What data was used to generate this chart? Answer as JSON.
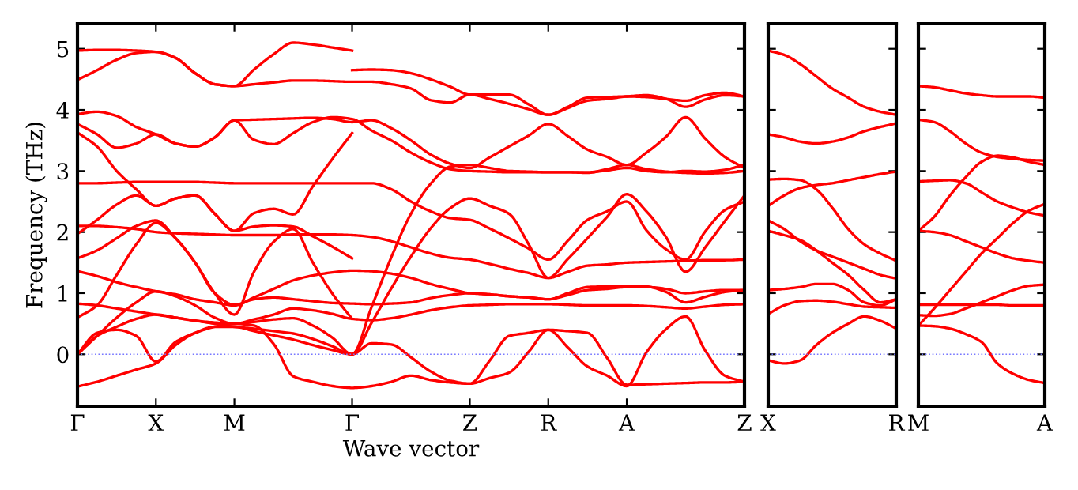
{
  "chart_data": [
    {
      "type": "line",
      "color": "#ff0000",
      "ylabel": "Frequency (THz)",
      "xlabel": "Wave vector",
      "categories": [
        "Γ",
        null,
        null,
        null,
        "X",
        null,
        null,
        null,
        "M",
        null,
        null,
        null,
        null,
        null,
        "Γ",
        null,
        null,
        null,
        null,
        null,
        "Z",
        null,
        null,
        null,
        "R",
        null,
        null,
        null,
        "A",
        null,
        null,
        null,
        null,
        null,
        "Z"
      ],
      "ylim": [
        -0.85,
        5.41
      ],
      "yticks": [
        0,
        1,
        2,
        3,
        4,
        5
      ],
      "ref_lines": [
        {
          "axis": "y",
          "value": 0,
          "color": "#7777ff",
          "line_style": "dotted"
        }
      ],
      "series": [
        {
          "values": [
            4.97,
            4.98,
            4.98,
            4.97,
            4.95,
            4.85,
            4.6,
            4.42,
            4.39,
            4.66,
            4.91,
            5.1,
            5.07,
            5.02,
            4.97,
            null,
            null,
            null,
            null,
            null,
            null,
            null,
            null,
            null,
            null,
            null,
            null,
            null,
            null,
            null,
            null,
            null,
            null,
            null,
            null
          ]
        },
        {
          "values": [
            4.49,
            4.65,
            4.82,
            4.93,
            4.95,
            4.85,
            4.6,
            4.42,
            4.39,
            4.42,
            4.45,
            4.48,
            4.48,
            4.47,
            4.46,
            4.46,
            4.42,
            4.35,
            4.16,
            4.12,
            4.25,
            4.18,
            4.1,
            4.01,
            3.92,
            4.03,
            4.15,
            4.18,
            4.22,
            4.24,
            4.18,
            4.05,
            4.17,
            4.24,
            4.22
          ]
        },
        {
          "values": [
            3.93,
            3.97,
            3.9,
            3.72,
            3.6,
            3.45,
            3.4,
            3.55,
            3.83,
            3.84,
            3.85,
            3.86,
            3.87,
            3.85,
            3.8,
            3.83,
            3.7,
            3.5,
            3.27,
            3.12,
            3.05,
            3.22,
            3.4,
            3.58,
            3.77,
            3.57,
            3.35,
            3.23,
            3.1,
            3.3,
            3.56,
            3.88,
            3.53,
            3.23,
            3.05
          ]
        },
        {
          "values": [
            3.77,
            3.6,
            3.38,
            3.45,
            3.6,
            3.45,
            3.4,
            3.55,
            3.83,
            3.51,
            3.44,
            3.62,
            3.8,
            3.88,
            3.85,
            3.66,
            3.5,
            3.3,
            3.14,
            3.03,
            3.0,
            2.99,
            2.98,
            2.98,
            2.98,
            2.98,
            2.97,
            3.03,
            3.1,
            3.03,
            2.99,
            2.97,
            2.96,
            2.97,
            3.0
          ]
        },
        {
          "values": [
            3.63,
            3.4,
            3.0,
            2.7,
            2.43,
            2.55,
            2.6,
            2.3,
            2.02,
            2.31,
            2.38,
            2.29,
            2.75,
            3.2,
            3.62,
            null,
            null,
            null,
            null,
            null,
            null,
            null,
            null,
            null,
            null,
            null,
            null,
            null,
            null,
            null,
            null,
            null,
            null,
            null,
            null
          ]
        },
        {
          "values": [
            2.8,
            2.8,
            2.81,
            2.82,
            2.82,
            2.82,
            2.82,
            2.81,
            2.8,
            2.8,
            2.8,
            2.8,
            2.8,
            2.8,
            2.8,
            2.8,
            2.7,
            2.5,
            2.34,
            2.23,
            2.2,
            2.06,
            1.9,
            1.73,
            1.55,
            1.86,
            2.2,
            2.34,
            2.5,
            2.03,
            1.72,
            1.55,
            2.01,
            2.36,
            2.5
          ]
        },
        {
          "values": [
            2.1,
            2.1,
            2.08,
            2.05,
            2.0,
            1.98,
            1.97,
            1.96,
            1.95,
            1.95,
            1.95,
            1.96,
            1.96,
            1.96,
            1.95,
            1.92,
            1.85,
            1.75,
            1.65,
            1.58,
            1.55,
            1.48,
            1.4,
            1.33,
            1.25,
            1.35,
            1.45,
            1.47,
            1.5,
            1.51,
            1.52,
            1.53,
            1.54,
            1.54,
            1.55
          ]
        },
        {
          "values": [
            1.97,
            2.2,
            2.45,
            2.6,
            2.43,
            2.55,
            2.6,
            2.3,
            2.02,
            2.09,
            2.11,
            2.09,
            1.93,
            1.76,
            1.57,
            null,
            null,
            null,
            null,
            null,
            null,
            null,
            null,
            null,
            null,
            null,
            null,
            null,
            null,
            null,
            null,
            null,
            null,
            null,
            null
          ]
        },
        {
          "values": [
            1.57,
            1.7,
            1.9,
            2.1,
            2.19,
            1.9,
            1.5,
            1.0,
            0.65,
            1.35,
            1.84,
            2.05,
            1.5,
            0.99,
            0.58,
            null,
            null,
            null,
            null,
            null,
            null,
            null,
            null,
            null,
            null,
            null,
            null,
            null,
            null,
            null,
            null,
            null,
            null,
            null,
            null
          ]
        },
        {
          "values": [
            0.6,
            0.8,
            1.3,
            1.8,
            2.15,
            1.9,
            1.5,
            1.0,
            0.81,
            0.9,
            0.93,
            0.9,
            0.87,
            0.84,
            0.83,
            0.82,
            0.83,
            0.85,
            0.92,
            0.97,
            1.0,
            0.98,
            0.95,
            0.93,
            0.9,
            0.97,
            1.05,
            1.07,
            1.1,
            1.1,
            1.07,
            1.0,
            1.03,
            1.05,
            1.05
          ]
        },
        {
          "values": [
            1.36,
            1.28,
            1.18,
            1.1,
            1.03,
            0.98,
            0.9,
            0.85,
            0.8,
            0.93,
            1.07,
            1.21,
            1.29,
            1.34,
            1.37,
            1.36,
            1.32,
            1.25,
            1.15,
            1.07,
            1.0,
            0.98,
            0.95,
            0.93,
            0.9,
            1.0,
            1.1,
            1.11,
            1.12,
            1.11,
            1.02,
            0.85,
            0.94,
            1.02,
            1.05
          ]
        },
        {
          "values": [
            0.83,
            0.8,
            0.75,
            0.7,
            0.65,
            0.6,
            0.55,
            0.52,
            0.5,
            0.57,
            0.65,
            0.75,
            0.72,
            0.66,
            0.58,
            0.56,
            0.59,
            0.65,
            0.72,
            0.77,
            0.8,
            0.81,
            0.82,
            0.82,
            0.82,
            0.81,
            0.8,
            0.8,
            0.8,
            0.79,
            0.77,
            0.75,
            0.78,
            0.81,
            0.82
          ]
        },
        {
          "values": [
            0,
            0.3,
            0.6,
            0.85,
            1.03,
            0.95,
            0.8,
            0.6,
            0.5,
            0.53,
            0.57,
            0.59,
            0.47,
            0.27,
            0,
            0.78,
            1.59,
            2.3,
            2.79,
            3.07,
            3.1,
            3.05,
            3.0,
            2.99,
            2.98,
            2.98,
            2.98,
            3.01,
            3.05,
            3.0,
            2.98,
            3.0,
            2.99,
            3.02,
            3.1
          ]
        },
        {
          "values": [
            0,
            0.3,
            0.45,
            0.58,
            0.65,
            0.6,
            0.55,
            0.5,
            0.45,
            0.42,
            0.38,
            0.34,
            0.25,
            0.13,
            0,
            0.52,
            1.08,
            1.6,
            2.06,
            2.39,
            2.55,
            2.43,
            2.3,
            1.8,
            1.25,
            1.56,
            1.9,
            2.25,
            2.62,
            2.34,
            1.92,
            1.35,
            1.75,
            2.18,
            2.6
          ]
        },
        {
          "values": [
            0,
            0.35,
            0.4,
            0.3,
            -0.12,
            0.2,
            0.35,
            0.45,
            0.5,
            0.47,
            0.17,
            -0.36,
            -0.45,
            -0.52,
            -0.55,
            -0.52,
            -0.45,
            -0.35,
            -0.42,
            -0.46,
            -0.48,
            -0.11,
            0.3,
            0.35,
            0.4,
            0.38,
            0.35,
            -0.06,
            -0.5,
            -0.49,
            -0.48,
            -0.47,
            -0.46,
            -0.46,
            -0.45
          ]
        },
        {
          "values": [
            -0.53,
            -0.45,
            -0.35,
            -0.25,
            -0.15,
            0.15,
            0.35,
            0.45,
            0.45,
            0.38,
            0.31,
            0.24,
            0.15,
            0.07,
            0,
            0.18,
            0.16,
            -0.05,
            -0.28,
            -0.43,
            -0.48,
            -0.39,
            -0.3,
            0.04,
            0.4,
            0.11,
            -0.2,
            -0.35,
            -0.52,
            0.03,
            0.41,
            0.62,
            0.06,
            -0.35,
            -0.45
          ]
        },
        {
          "values": [
            null,
            null,
            null,
            null,
            null,
            null,
            null,
            null,
            null,
            null,
            null,
            null,
            null,
            null,
            4.65,
            4.66,
            4.65,
            4.6,
            4.5,
            4.38,
            4.25,
            4.25,
            4.25,
            4.09,
            3.92,
            4.05,
            4.2,
            4.21,
            4.22,
            4.21,
            4.18,
            4.15,
            4.24,
            4.28,
            4.22
          ]
        }
      ]
    },
    {
      "type": "line",
      "color": "#ff0000",
      "tick_labels": "x",
      "categories": [
        "X",
        null,
        null,
        null,
        null,
        null,
        null,
        null,
        "R"
      ],
      "ylim": [
        -0.85,
        5.41
      ],
      "yticks": [
        0,
        1,
        2,
        3,
        4,
        5
      ],
      "ref_lines": [
        {
          "axis": "y",
          "value": 0,
          "color": "#7777ff",
          "line_style": "dotted"
        }
      ],
      "series": [
        {
          "values": [
            4.97,
            4.9,
            4.75,
            4.55,
            4.35,
            4.2,
            4.05,
            3.97,
            3.92
          ]
        },
        {
          "values": [
            3.6,
            3.55,
            3.48,
            3.45,
            3.48,
            3.55,
            3.65,
            3.72,
            3.78
          ]
        },
        {
          "values": [
            2.86,
            2.87,
            2.85,
            2.7,
            2.4,
            2.05,
            1.8,
            1.65,
            1.53
          ]
        },
        {
          "values": [
            2.43,
            2.6,
            2.72,
            2.77,
            2.8,
            2.85,
            2.9,
            2.95,
            2.99
          ]
        },
        {
          "values": [
            2.19,
            2.05,
            1.85,
            1.7,
            1.6,
            1.5,
            1.4,
            1.3,
            1.24
          ]
        },
        {
          "values": [
            2.02,
            1.95,
            1.87,
            1.7,
            1.5,
            1.3,
            1.05,
            0.85,
            0.9
          ]
        },
        {
          "values": [
            1.05,
            1.07,
            1.1,
            1.15,
            1.15,
            1.05,
            0.85,
            0.8,
            0.9
          ]
        },
        {
          "values": [
            0.66,
            0.8,
            0.87,
            0.88,
            0.86,
            0.82,
            0.78,
            0.77,
            0.76
          ]
        },
        {
          "values": [
            -0.1,
            -0.15,
            -0.1,
            0.15,
            0.35,
            0.5,
            0.62,
            0.55,
            0.42
          ]
        }
      ]
    },
    {
      "type": "line",
      "color": "#ff0000",
      "tick_labels": "x",
      "categories": [
        "M",
        null,
        null,
        null,
        null,
        null,
        null,
        null,
        "A"
      ],
      "ylim": [
        -0.85,
        5.41
      ],
      "yticks": [
        0,
        1,
        2,
        3,
        4,
        5
      ],
      "ref_lines": [
        {
          "axis": "y",
          "value": 0,
          "color": "#7777ff",
          "line_style": "dotted"
        }
      ],
      "series": [
        {
          "values": [
            4.39,
            4.37,
            4.32,
            4.27,
            4.24,
            4.22,
            4.22,
            4.22,
            4.2
          ]
        },
        {
          "values": [
            3.84,
            3.8,
            3.65,
            3.45,
            3.3,
            3.23,
            3.2,
            3.18,
            3.17
          ]
        },
        {
          "values": [
            2.83,
            2.84,
            2.85,
            2.8,
            2.65,
            2.5,
            2.4,
            2.32,
            2.27
          ]
        },
        {
          "values": [
            2.02,
            2.25,
            2.6,
            2.9,
            3.15,
            3.25,
            3.22,
            3.15,
            3.1
          ]
        },
        {
          "values": [
            2.02,
            2.0,
            1.95,
            1.85,
            1.75,
            1.65,
            1.57,
            1.53,
            1.5
          ]
        },
        {
          "values": [
            0.47,
            0.75,
            1.05,
            1.35,
            1.65,
            1.9,
            2.15,
            2.35,
            2.46
          ]
        },
        {
          "values": [
            0.81,
            0.81,
            0.81,
            0.81,
            0.81,
            0.81,
            0.8,
            0.8,
            0.8
          ]
        },
        {
          "values": [
            0.64,
            0.63,
            0.66,
            0.75,
            0.85,
            0.95,
            1.05,
            1.12,
            1.14
          ]
        },
        {
          "values": [
            0.47,
            0.46,
            0.42,
            0.33,
            0.2,
            -0.15,
            -0.32,
            -0.42,
            -0.47
          ]
        }
      ]
    }
  ]
}
